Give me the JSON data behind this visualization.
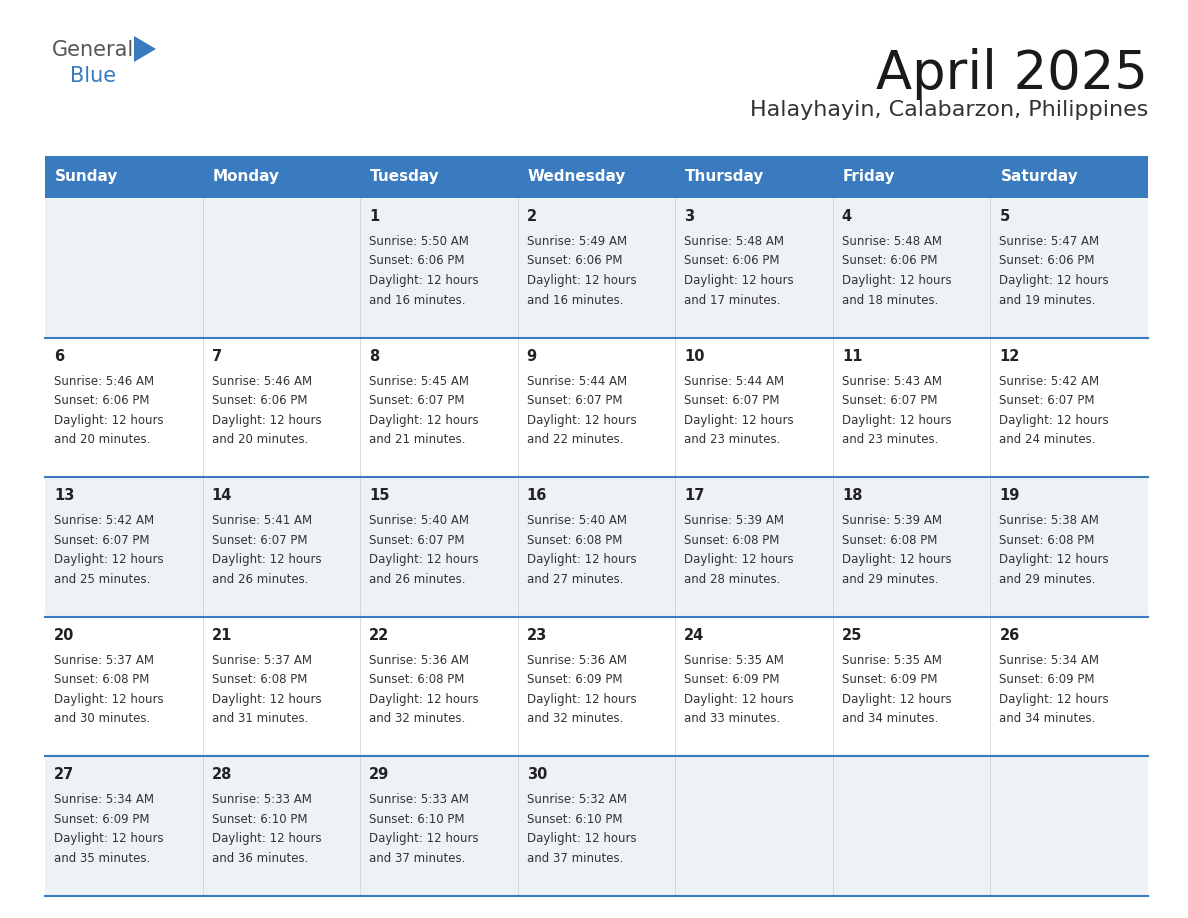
{
  "title": "April 2025",
  "subtitle": "Halayhayin, Calabarzon, Philippines",
  "header_bg_color": "#3a7abf",
  "header_text_color": "#ffffff",
  "cell_bg_row0": "#eef2f7",
  "cell_bg_row1": "#ffffff",
  "cell_bg_row2": "#eef2f7",
  "cell_bg_row3": "#ffffff",
  "cell_bg_row4": "#eef2f7",
  "row_line_color": "#3a7abf",
  "text_color": "#333333",
  "day_headers": [
    "Sunday",
    "Monday",
    "Tuesday",
    "Wednesday",
    "Thursday",
    "Friday",
    "Saturday"
  ],
  "days": [
    {
      "day": 1,
      "col": 2,
      "row": 0,
      "sunrise": "5:50 AM",
      "sunset": "6:06 PM",
      "daylight_hours": 12,
      "daylight_minutes": 16
    },
    {
      "day": 2,
      "col": 3,
      "row": 0,
      "sunrise": "5:49 AM",
      "sunset": "6:06 PM",
      "daylight_hours": 12,
      "daylight_minutes": 16
    },
    {
      "day": 3,
      "col": 4,
      "row": 0,
      "sunrise": "5:48 AM",
      "sunset": "6:06 PM",
      "daylight_hours": 12,
      "daylight_minutes": 17
    },
    {
      "day": 4,
      "col": 5,
      "row": 0,
      "sunrise": "5:48 AM",
      "sunset": "6:06 PM",
      "daylight_hours": 12,
      "daylight_minutes": 18
    },
    {
      "day": 5,
      "col": 6,
      "row": 0,
      "sunrise": "5:47 AM",
      "sunset": "6:06 PM",
      "daylight_hours": 12,
      "daylight_minutes": 19
    },
    {
      "day": 6,
      "col": 0,
      "row": 1,
      "sunrise": "5:46 AM",
      "sunset": "6:06 PM",
      "daylight_hours": 12,
      "daylight_minutes": 20
    },
    {
      "day": 7,
      "col": 1,
      "row": 1,
      "sunrise": "5:46 AM",
      "sunset": "6:06 PM",
      "daylight_hours": 12,
      "daylight_minutes": 20
    },
    {
      "day": 8,
      "col": 2,
      "row": 1,
      "sunrise": "5:45 AM",
      "sunset": "6:07 PM",
      "daylight_hours": 12,
      "daylight_minutes": 21
    },
    {
      "day": 9,
      "col": 3,
      "row": 1,
      "sunrise": "5:44 AM",
      "sunset": "6:07 PM",
      "daylight_hours": 12,
      "daylight_minutes": 22
    },
    {
      "day": 10,
      "col": 4,
      "row": 1,
      "sunrise": "5:44 AM",
      "sunset": "6:07 PM",
      "daylight_hours": 12,
      "daylight_minutes": 23
    },
    {
      "day": 11,
      "col": 5,
      "row": 1,
      "sunrise": "5:43 AM",
      "sunset": "6:07 PM",
      "daylight_hours": 12,
      "daylight_minutes": 23
    },
    {
      "day": 12,
      "col": 6,
      "row": 1,
      "sunrise": "5:42 AM",
      "sunset": "6:07 PM",
      "daylight_hours": 12,
      "daylight_minutes": 24
    },
    {
      "day": 13,
      "col": 0,
      "row": 2,
      "sunrise": "5:42 AM",
      "sunset": "6:07 PM",
      "daylight_hours": 12,
      "daylight_minutes": 25
    },
    {
      "day": 14,
      "col": 1,
      "row": 2,
      "sunrise": "5:41 AM",
      "sunset": "6:07 PM",
      "daylight_hours": 12,
      "daylight_minutes": 26
    },
    {
      "day": 15,
      "col": 2,
      "row": 2,
      "sunrise": "5:40 AM",
      "sunset": "6:07 PM",
      "daylight_hours": 12,
      "daylight_minutes": 26
    },
    {
      "day": 16,
      "col": 3,
      "row": 2,
      "sunrise": "5:40 AM",
      "sunset": "6:08 PM",
      "daylight_hours": 12,
      "daylight_minutes": 27
    },
    {
      "day": 17,
      "col": 4,
      "row": 2,
      "sunrise": "5:39 AM",
      "sunset": "6:08 PM",
      "daylight_hours": 12,
      "daylight_minutes": 28
    },
    {
      "day": 18,
      "col": 5,
      "row": 2,
      "sunrise": "5:39 AM",
      "sunset": "6:08 PM",
      "daylight_hours": 12,
      "daylight_minutes": 29
    },
    {
      "day": 19,
      "col": 6,
      "row": 2,
      "sunrise": "5:38 AM",
      "sunset": "6:08 PM",
      "daylight_hours": 12,
      "daylight_minutes": 29
    },
    {
      "day": 20,
      "col": 0,
      "row": 3,
      "sunrise": "5:37 AM",
      "sunset": "6:08 PM",
      "daylight_hours": 12,
      "daylight_minutes": 30
    },
    {
      "day": 21,
      "col": 1,
      "row": 3,
      "sunrise": "5:37 AM",
      "sunset": "6:08 PM",
      "daylight_hours": 12,
      "daylight_minutes": 31
    },
    {
      "day": 22,
      "col": 2,
      "row": 3,
      "sunrise": "5:36 AM",
      "sunset": "6:08 PM",
      "daylight_hours": 12,
      "daylight_minutes": 32
    },
    {
      "day": 23,
      "col": 3,
      "row": 3,
      "sunrise": "5:36 AM",
      "sunset": "6:09 PM",
      "daylight_hours": 12,
      "daylight_minutes": 32
    },
    {
      "day": 24,
      "col": 4,
      "row": 3,
      "sunrise": "5:35 AM",
      "sunset": "6:09 PM",
      "daylight_hours": 12,
      "daylight_minutes": 33
    },
    {
      "day": 25,
      "col": 5,
      "row": 3,
      "sunrise": "5:35 AM",
      "sunset": "6:09 PM",
      "daylight_hours": 12,
      "daylight_minutes": 34
    },
    {
      "day": 26,
      "col": 6,
      "row": 3,
      "sunrise": "5:34 AM",
      "sunset": "6:09 PM",
      "daylight_hours": 12,
      "daylight_minutes": 34
    },
    {
      "day": 27,
      "col": 0,
      "row": 4,
      "sunrise": "5:34 AM",
      "sunset": "6:09 PM",
      "daylight_hours": 12,
      "daylight_minutes": 35
    },
    {
      "day": 28,
      "col": 1,
      "row": 4,
      "sunrise": "5:33 AM",
      "sunset": "6:10 PM",
      "daylight_hours": 12,
      "daylight_minutes": 36
    },
    {
      "day": 29,
      "col": 2,
      "row": 4,
      "sunrise": "5:33 AM",
      "sunset": "6:10 PM",
      "daylight_hours": 12,
      "daylight_minutes": 37
    },
    {
      "day": 30,
      "col": 3,
      "row": 4,
      "sunrise": "5:32 AM",
      "sunset": "6:10 PM",
      "daylight_hours": 12,
      "daylight_minutes": 37
    }
  ]
}
